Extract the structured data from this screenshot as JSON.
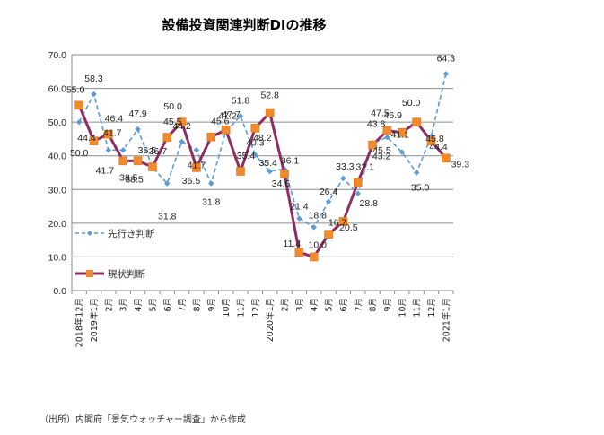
{
  "chart_data": {
    "type": "line",
    "title": "設備投資関連判断DIの推移",
    "xlabel": "",
    "ylabel": "",
    "ylim": [
      0,
      70
    ],
    "yticks": [
      "0.0",
      "10.0",
      "20.0",
      "30.0",
      "40.0",
      "50.0",
      "60.0",
      "70.0"
    ],
    "grid": true,
    "legend_position": "left-inside",
    "categories": [
      "2018年12月",
      "2019年1月",
      "2月",
      "3月",
      "4月",
      "5月",
      "6月",
      "7月",
      "8月",
      "9月",
      "10月",
      "11月",
      "12月",
      "2020年1月",
      "2月",
      "3月",
      "4月",
      "5月",
      "6月",
      "7月",
      "8月",
      "9月",
      "10月",
      "11月",
      "12月",
      "2021年1月"
    ],
    "series": [
      {
        "name": "先行き判断",
        "style": "dashed-diamond",
        "color": "#5b9bd5",
        "values": [
          50.0,
          58.3,
          41.7,
          41.7,
          47.9,
          36.5,
          31.8,
          44.2,
          41.7,
          31.8,
          47.2,
          51.8,
          40.3,
          35.4,
          36.1,
          21.4,
          18.8,
          26.4,
          33.3,
          28.8,
          43.8,
          45.5,
          41.1,
          35.0,
          45.8,
          64.3
        ]
      },
      {
        "name": "現状判断",
        "style": "solid-square",
        "color": "#8e2d63",
        "marker_color": "#f08a2c",
        "values": [
          55.0,
          44.4,
          46.4,
          38.5,
          38.5,
          36.7,
          45.5,
          50.0,
          36.5,
          45.6,
          47.7,
          35.4,
          48.2,
          52.8,
          34.6,
          11.4,
          10.0,
          16.7,
          20.5,
          32.1,
          43.2,
          47.5,
          46.9,
          50.0,
          44.4,
          39.3
        ]
      }
    ]
  },
  "source_note": "（出所）内閣府「景気ウォッチャー調査」から作成"
}
